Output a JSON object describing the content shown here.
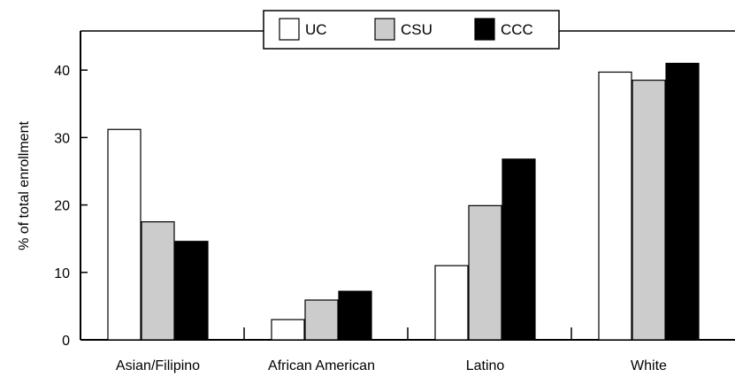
{
  "chart_data": {
    "type": "bar",
    "categories": [
      "Asian/Filipino",
      "African American",
      "Latino",
      "White"
    ],
    "series": [
      {
        "name": "UC",
        "values": [
          31.2,
          3.0,
          11.0,
          39.7
        ],
        "color": "#ffffff"
      },
      {
        "name": "CSU",
        "values": [
          17.5,
          5.9,
          19.9,
          38.5
        ],
        "color": "#cccccc"
      },
      {
        "name": "CCC",
        "values": [
          14.6,
          7.2,
          26.8,
          41.0
        ],
        "color": "#000000"
      }
    ],
    "ylabel": "% of total enrollment",
    "yticks": [
      0,
      10,
      20,
      30,
      40
    ],
    "ylim": [
      0,
      45
    ],
    "grid": false,
    "legend_position": "top-center"
  }
}
